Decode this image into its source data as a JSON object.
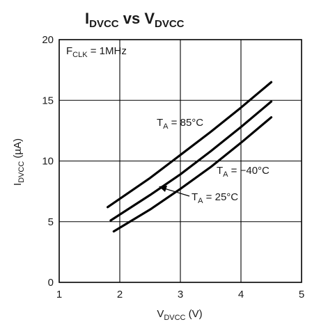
{
  "chart_data": {
    "type": "line",
    "title": {
      "main": "I",
      "main_sub": "DVCC",
      "mid": " vs V",
      "end_sub": "DVCC"
    },
    "xlabel": {
      "main": "V",
      "sub": "DVCC",
      "tail": " (V)"
    },
    "ylabel": {
      "main": "I",
      "sub": "DVCC",
      "tail": " (µA)"
    },
    "xlim": [
      1,
      5
    ],
    "ylim": [
      0,
      20
    ],
    "xticks": [
      1,
      2,
      3,
      4,
      5
    ],
    "yticks": [
      0,
      5,
      10,
      15,
      20
    ],
    "grid": true,
    "condition": {
      "main": "F",
      "sub": "CLK",
      "tail": " = 1MHz"
    },
    "series": [
      {
        "name": "T_A = 85°C",
        "label": {
          "main": "T",
          "sub": "A",
          "tail": " = 85°C"
        },
        "x": [
          1.8,
          2.5,
          3.0,
          3.5,
          4.0,
          4.5
        ],
        "y": [
          6.2,
          8.6,
          10.5,
          12.4,
          14.4,
          16.5
        ]
      },
      {
        "name": "T_A = 25°C",
        "label": {
          "main": "T",
          "sub": "A",
          "tail": " = 25°C"
        },
        "x": [
          1.85,
          2.5,
          3.0,
          3.5,
          4.0,
          4.5
        ],
        "y": [
          5.1,
          7.2,
          8.9,
          10.8,
          12.8,
          14.9
        ]
      },
      {
        "name": "T_A = −40°C",
        "label": {
          "main": "T",
          "sub": "A",
          "tail": " = −40°C"
        },
        "x": [
          1.9,
          2.5,
          3.0,
          3.5,
          4.0,
          4.5
        ],
        "y": [
          4.2,
          6.0,
          7.7,
          9.5,
          11.5,
          13.6
        ]
      }
    ]
  }
}
